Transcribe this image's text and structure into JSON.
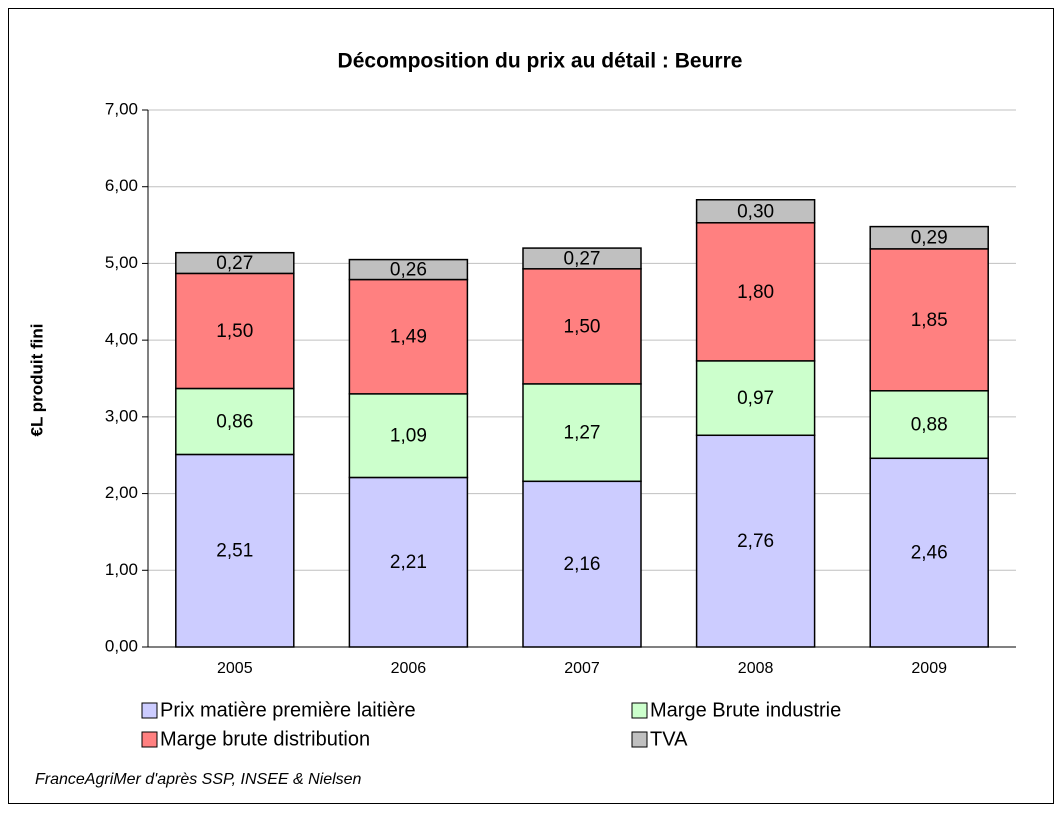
{
  "chart_data": {
    "type": "stacked_bar",
    "title": "Décomposition du prix au détail : Beurre",
    "ylabel": "€L produit fini",
    "source": "FranceAgriMer d'après SSP, INSEE & Nielsen",
    "categories": [
      "2005",
      "2006",
      "2007",
      "2008",
      "2009"
    ],
    "series": [
      {
        "name": "Prix matière première laitière",
        "color": "#ccccff",
        "values": [
          2.51,
          2.21,
          2.16,
          2.76,
          2.46
        ],
        "value_labels": [
          "2,51",
          "2,21",
          "2,16",
          "2,76",
          "2,46"
        ]
      },
      {
        "name": "Marge Brute industrie",
        "color": "#ccffcc",
        "values": [
          0.86,
          1.09,
          1.27,
          0.97,
          0.88
        ],
        "value_labels": [
          "0,86",
          "1,09",
          "1,27",
          "0,97",
          "0,88"
        ]
      },
      {
        "name": "Marge brute distribution",
        "color": "#ff8080",
        "values": [
          1.5,
          1.49,
          1.5,
          1.8,
          1.85
        ],
        "value_labels": [
          "1,50",
          "1,49",
          "1,50",
          "1,80",
          "1,85"
        ]
      },
      {
        "name": "TVA",
        "color": "#c0c0c0",
        "values": [
          0.27,
          0.26,
          0.27,
          0.3,
          0.29
        ],
        "value_labels": [
          "0,27",
          "0,26",
          "0,27",
          "0,30",
          "0,29"
        ]
      }
    ],
    "ylim": [
      0,
      7
    ],
    "yticks": [
      {
        "value": 0,
        "label": "0,00"
      },
      {
        "value": 1,
        "label": "1,00"
      },
      {
        "value": 2,
        "label": "2,00"
      },
      {
        "value": 3,
        "label": "3,00"
      },
      {
        "value": 4,
        "label": "4,00"
      },
      {
        "value": 5,
        "label": "5,00"
      },
      {
        "value": 6,
        "label": "6,00"
      },
      {
        "value": 7,
        "label": "7,00"
      }
    ],
    "grid": true,
    "legend": "bottom"
  }
}
